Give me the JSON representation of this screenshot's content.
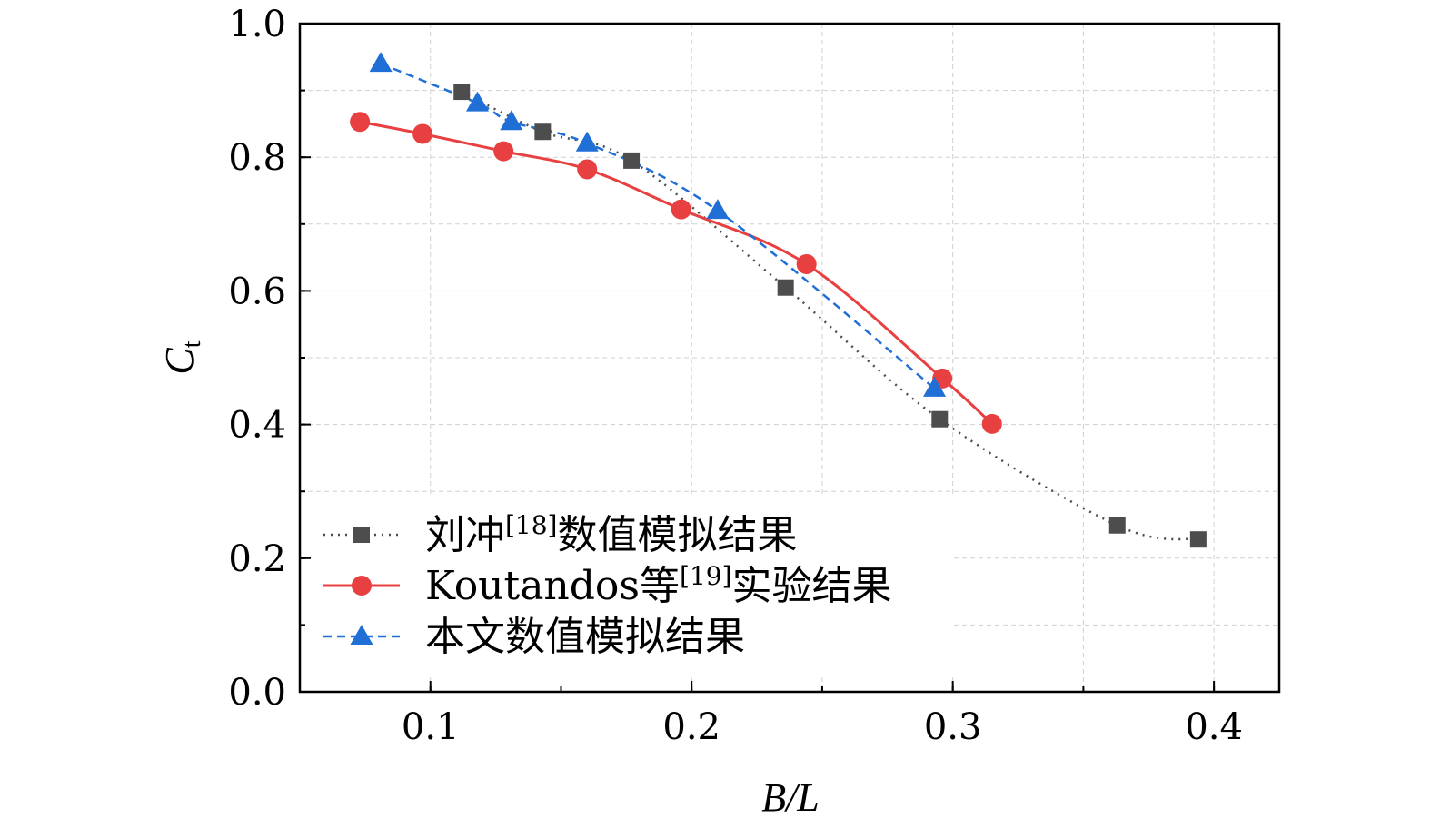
{
  "chart_data": {
    "type": "line",
    "xlabel": {
      "main": "B/L"
    },
    "ylabel": {
      "main": "C",
      "sub": "t"
    },
    "xlim": [
      0.05,
      0.425
    ],
    "ylim": [
      0.0,
      1.0
    ],
    "xticks": [
      0.1,
      0.2,
      0.3,
      0.4
    ],
    "xtick_labels": [
      "0.1",
      "0.2",
      "0.3",
      "0.4"
    ],
    "yticks": [
      0.0,
      0.2,
      0.4,
      0.6,
      0.8,
      1.0
    ],
    "ytick_labels": [
      "0.0",
      "0.2",
      "0.4",
      "0.6",
      "0.8",
      "1.0"
    ],
    "grid": true,
    "legend_position": "lower-left",
    "series": [
      {
        "name": "刘冲[18]数值模拟结果",
        "legend": {
          "before": "刘冲",
          "sup": "[18]",
          "after": "数值模拟结果"
        },
        "color": "#4d4d4d",
        "marker": "square",
        "line_style": "dotted",
        "x": [
          0.112,
          0.143,
          0.177,
          0.236,
          0.295,
          0.363,
          0.394
        ],
        "y": [
          0.898,
          0.838,
          0.795,
          0.605,
          0.408,
          0.249,
          0.228
        ]
      },
      {
        "name": "Koutandos等[19]实验结果",
        "legend": {
          "before": "Koutandos等",
          "sup": "[19]",
          "after": "实验结果"
        },
        "color": "#e84040",
        "marker": "circle",
        "line_style": "solid",
        "x": [
          0.073,
          0.097,
          0.128,
          0.16,
          0.196,
          0.244,
          0.296,
          0.315
        ],
        "y": [
          0.853,
          0.835,
          0.809,
          0.782,
          0.722,
          0.64,
          0.469,
          0.401
        ]
      },
      {
        "name": "本文数值模拟结果",
        "legend": {
          "before": "本文数值模拟结果",
          "sup": "",
          "after": ""
        },
        "color": "#1f6fd6",
        "marker": "triangle",
        "line_style": "dashed",
        "x": [
          0.081,
          0.118,
          0.131,
          0.16,
          0.21,
          0.293
        ],
        "y": [
          0.94,
          0.881,
          0.853,
          0.821,
          0.72,
          0.454
        ]
      }
    ]
  }
}
